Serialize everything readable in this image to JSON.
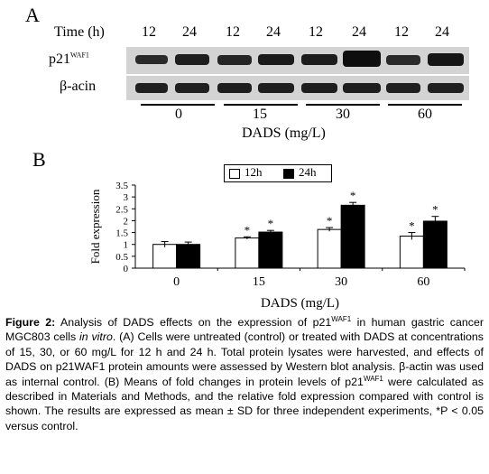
{
  "panel_a": {
    "letter": "A",
    "time_label": "Time (h)",
    "times": [
      "12",
      "24",
      "12",
      "24",
      "12",
      "24",
      "12",
      "24"
    ],
    "row1_label": "p21",
    "row1_sup": "WAF1",
    "row2_label": "β-acin",
    "doses": [
      "0",
      "15",
      "30",
      "60"
    ],
    "dose_axis_label": "DADS (mg/L)"
  },
  "panel_b": {
    "letter": "B",
    "legend": [
      "12h",
      "24h"
    ],
    "colors": {
      "12h": "#ffffff",
      "24h": "#000000"
    }
  },
  "chart_data": {
    "type": "bar",
    "categories": [
      "0",
      "15",
      "30",
      "60"
    ],
    "series": [
      {
        "name": "12h",
        "values": [
          1.0,
          1.27,
          1.63,
          1.35
        ],
        "errors": [
          0.12,
          0.05,
          0.08,
          0.15
        ]
      },
      {
        "name": "24h",
        "values": [
          1.0,
          1.52,
          2.65,
          1.98
        ],
        "errors": [
          0.1,
          0.07,
          0.12,
          0.2
        ]
      }
    ],
    "significance": [
      [
        "",
        "*",
        "*",
        "*"
      ],
      [
        "",
        "*",
        "*",
        "*"
      ]
    ],
    "star": "*",
    "xlabel": "DADS (mg/L)",
    "ylabel": "Fold expression",
    "ylim": [
      0,
      3.5
    ],
    "yticks": [
      "0",
      "0.5",
      "1",
      "1.5",
      "2",
      "2.5",
      "3",
      "3.5"
    ],
    "legend_position": "top"
  },
  "caption": {
    "fig_label": "Figure 2:",
    "t1": " Analysis of DADS effects on the expression of p21",
    "sup1": "WAF1",
    "t2": " in human gastric cancer MGC803 cells ",
    "italic": "in vitro",
    "t3": ". (A) Cells were untreated (control) or treated with DADS at concentrations of 15, 30, or 60 mg/L for 12 h and 24 h. Total protein lysates were harvested, and effects of DADS on p21WAF1 protein amounts were assessed by Western blot analysis. β-actin was used as internal control. (B) Means of fold changes in protein levels of p21",
    "sup2": "WAF1",
    "t4": " were calculated as described in Materials and Methods, and the relative fold expression compared with control is shown. The results are expressed as mean ± SD for three independent experiments, *P < 0.05 versus control."
  }
}
